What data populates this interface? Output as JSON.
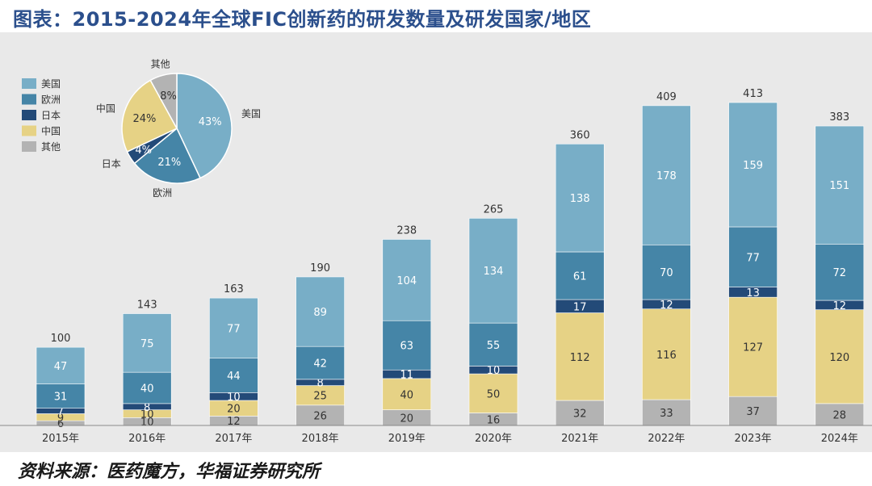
{
  "title": "图表：2015-2024年全球FIC创新药的研发数量及研发国家/地区",
  "source": "资料来源：医药魔方，华福证券研究所",
  "chart_data": [
    {
      "type": "bar",
      "stacked": true,
      "categories": [
        "2015年",
        "2016年",
        "2017年",
        "2018年",
        "2019年",
        "2020年",
        "2021年",
        "2022年",
        "2023年",
        "2024年"
      ],
      "series": [
        {
          "name": "其他",
          "color": "#b3b3b3",
          "values": [
            6,
            10,
            12,
            26,
            20,
            16,
            32,
            33,
            37,
            28
          ]
        },
        {
          "name": "中国",
          "color": "#e6d285",
          "values": [
            9,
            10,
            20,
            25,
            40,
            50,
            112,
            116,
            127,
            120
          ]
        },
        {
          "name": "日本",
          "color": "#234a78",
          "values": [
            7,
            8,
            10,
            8,
            11,
            10,
            17,
            12,
            13,
            12
          ]
        },
        {
          "name": "欧洲",
          "color": "#4585a7",
          "values": [
            31,
            40,
            44,
            42,
            63,
            55,
            61,
            70,
            77,
            72
          ]
        },
        {
          "name": "美国",
          "color": "#78aec7",
          "values": [
            47,
            75,
            77,
            89,
            104,
            134,
            138,
            178,
            159,
            151
          ]
        }
      ],
      "totals": [
        100,
        143,
        163,
        190,
        238,
        265,
        360,
        409,
        413,
        383
      ],
      "legend": {
        "position": "top-left",
        "order": [
          "美国",
          "欧洲",
          "日本",
          "中国",
          "其他"
        ]
      },
      "grid": false
    },
    {
      "type": "pie",
      "slices": [
        {
          "name": "美国",
          "label": "43%",
          "value": 43,
          "color": "#78aec7"
        },
        {
          "name": "欧洲",
          "label": "21%",
          "value": 21,
          "color": "#4585a7"
        },
        {
          "name": "日本",
          "label": "4%",
          "value": 4,
          "color": "#234a78"
        },
        {
          "name": "中国",
          "label": "24%",
          "value": 24,
          "color": "#e6d285"
        },
        {
          "name": "其他",
          "label": "8%",
          "value": 8,
          "color": "#b3b3b3"
        }
      ]
    }
  ]
}
